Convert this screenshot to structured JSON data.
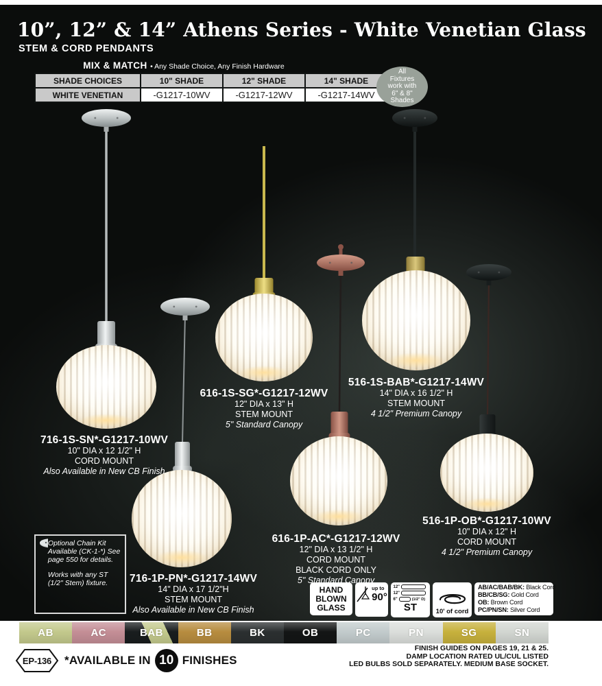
{
  "header": {
    "title": "10”, 12” & 14” Athens Series - White Venetian Glass",
    "subtitle": "STEM & CORD PENDANTS"
  },
  "mix_match": {
    "heading": "MIX & MATCH",
    "tagline": "• Any Shade Choice, Any Finish Hardware"
  },
  "shade_table": {
    "headers": [
      "SHADE CHOICES",
      "10\" SHADE",
      "12\" SHADE",
      "14\" SHADE"
    ],
    "row": [
      "WHITE VENETIAN",
      "-G1217-10WV",
      "-G1217-12WV",
      "-G1217-14WV"
    ]
  },
  "fixture_badge": {
    "lines": [
      "All",
      "Fixtures",
      "work with",
      "6\" & 8\"",
      "Shades"
    ]
  },
  "products": [
    {
      "model": "716-1S-SN*-G1217-10WV",
      "size": "10\" DIA x 12 1/2\" H",
      "mount": "CORD MOUNT",
      "note": "Also Available in New CB Finish"
    },
    {
      "model": "616-1S-SG*-G1217-12WV",
      "size": "12\" DIA x 13\" H",
      "mount": "STEM MOUNT",
      "note": "5\" Standard Canopy"
    },
    {
      "model": "516-1S-BAB*-G1217-14WV",
      "size": "14\" DIA x 16 1/2\" H",
      "mount": "STEM MOUNT",
      "note": "4 1/2\" Premium Canopy"
    },
    {
      "model": "616-1P-AC*-G1217-12WV",
      "size": "12\" DIA x 13 1/2\" H",
      "mount": "CORD MOUNT",
      "extra": "BLACK CORD ONLY",
      "note": "5\" Standard Canopy"
    },
    {
      "model": "716-1P-PN*-G1217-14WV",
      "size": "14\" DIA x 17 1/2\"H",
      "mount": "STEM MOUNT",
      "note": "Also Available in New CB Finish"
    },
    {
      "model": "516-1P-OB*-G1217-10WV",
      "size": "10\" DIA x 12\" H",
      "mount": "CORD MOUNT",
      "note": "4 1/2\" Premium Canopy"
    }
  ],
  "chain_kit": {
    "para1": "Optional Chain Kit Available (CK-1-*) See page 550 for details.",
    "para2": "Works with any ST (1/2\" Stem) fixture."
  },
  "info": {
    "hand_blown": [
      "HAND",
      "BLOWN",
      "GLASS"
    ],
    "sloped": {
      "small": "up to",
      "big": "90°"
    },
    "stems": {
      "rows": [
        {
          "len": "12\"",
          "extra": ""
        },
        {
          "len": "12\"",
          "extra": ""
        },
        {
          "len": "6\"",
          "extra": "(1/2\" D)"
        }
      ],
      "label": "ST"
    },
    "cord_length": "10' of cord",
    "cord_colors": [
      {
        "codes": "AB/AC/BAB/BK:",
        "name": " Black Cord"
      },
      {
        "codes": "BB/CB/SG:",
        "name": " Gold Cord"
      },
      {
        "codes": "OB:",
        "name": " Brown Cord"
      },
      {
        "codes": "PC/PN/SN:",
        "name": " Silver Cord"
      }
    ]
  },
  "finishes": [
    {
      "code": "AB",
      "bg": "#c3c98c"
    },
    {
      "code": "AC",
      "bg": "#c48e96"
    },
    {
      "code": "BAB",
      "bg": "#191d1e",
      "bg2": "#c3c98c"
    },
    {
      "code": "BB",
      "bg": "#b78c3f"
    },
    {
      "code": "BK",
      "bg": "#2b2f30"
    },
    {
      "code": "OB",
      "bg": "#131515"
    },
    {
      "code": "PC",
      "bg": "#c2cbcc"
    },
    {
      "code": "PN",
      "bg": "#dbdedb"
    },
    {
      "code": "SG",
      "bg": "#c7b13c"
    },
    {
      "code": "SN",
      "bg": "#d2d6d1"
    }
  ],
  "footer": {
    "page_code": "EP-136",
    "available_prefix": "*AVAILABLE IN",
    "finish_count": "10",
    "available_suffix": "FINISHES",
    "right_lines": [
      "FINISH GUIDES ON PAGES 19, 21 & 25.",
      "DAMP LOCATION RATED UL/CUL LISTED",
      "LED BULBS SOLD SEPARATELY. MEDIUM BASE SOCKET."
    ]
  },
  "colors": {
    "accent_gold": "#c9b84e",
    "accent_copper": "#b77f70",
    "accent_silver": "#b9bfc0",
    "accent_black": "#1d2222",
    "badge_bg": "#99a199"
  }
}
